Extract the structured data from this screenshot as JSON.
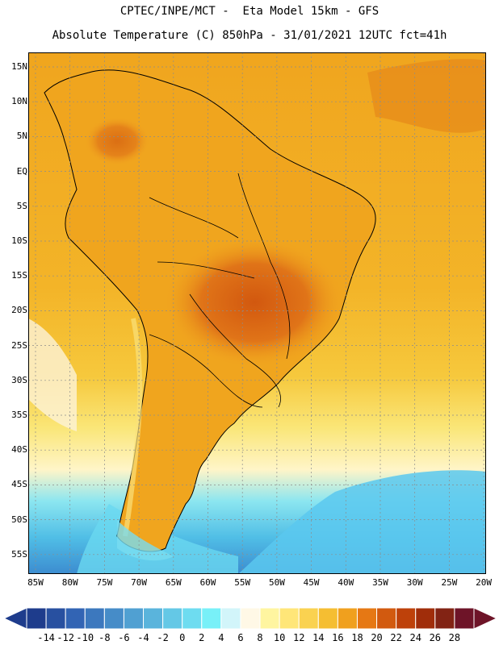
{
  "title_line1": "CPTEC/INPE/MCT -  Eta Model 15km - GFS",
  "title_line2": "Absolute Temperature (C) 850hPa - 31/01/2021 12UTC fct=41h",
  "lat_labels": [
    "15N",
    "10N",
    "5N",
    "EQ",
    "5S",
    "10S",
    "15S",
    "20S",
    "25S",
    "30S",
    "35S",
    "40S",
    "45S",
    "50S",
    "55S"
  ],
  "lon_labels": [
    "85W",
    "80W",
    "75W",
    "70W",
    "65W",
    "60W",
    "55W",
    "50W",
    "45W",
    "40W",
    "35W",
    "30W",
    "25W",
    "20W"
  ],
  "colorbar": {
    "ticks": [
      "-14",
      "-12",
      "-10",
      "-8",
      "-6",
      "-4",
      "-2",
      "0",
      "2",
      "4",
      "6",
      "8",
      "10",
      "12",
      "14",
      "16",
      "18",
      "20",
      "22",
      "24",
      "26",
      "28"
    ],
    "colors": [
      "#1e3c8c",
      "#2850a0",
      "#3264b4",
      "#3c78be",
      "#468cc8",
      "#50a0d2",
      "#5ab4dc",
      "#64c8e6",
      "#6edcf0",
      "#78f0f8",
      "#d2f5fa",
      "#fff8e6",
      "#fff5a0",
      "#ffe678",
      "#fad250",
      "#f5be32",
      "#f0a01e",
      "#e67814",
      "#d25a0f",
      "#be410a",
      "#a02d0a",
      "#822314",
      "#6e1428"
    ]
  },
  "colors": {
    "land_outline": "#000000",
    "grid": "#8c8c8c",
    "warm_ocean": "#f0a51e",
    "cold_ocean": "#46b4e6"
  }
}
